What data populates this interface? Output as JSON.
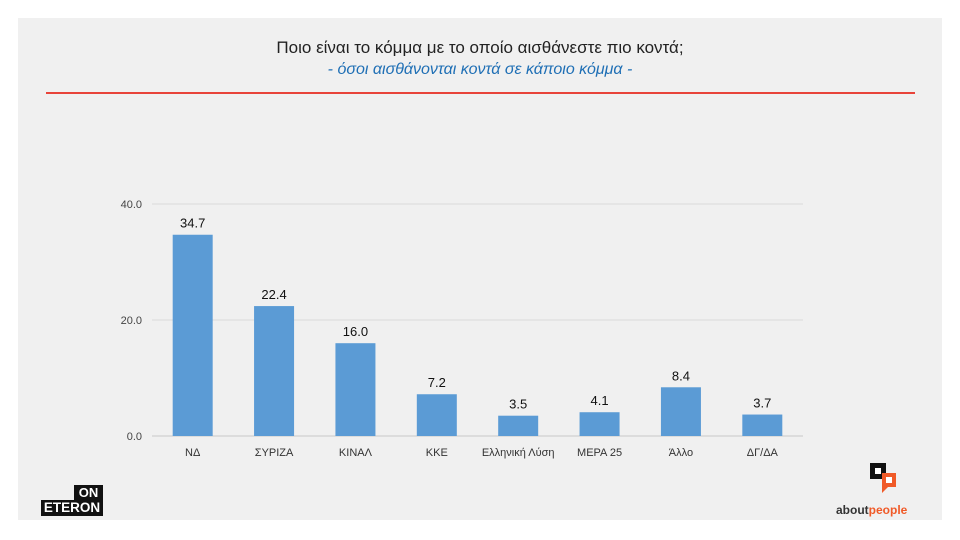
{
  "header": {
    "title": "Ποιο είναι το κόμμα με το οποίο αισθάνεστε πιο κοντά;",
    "subtitle": "- όσοι αισθάνονται κοντά σε κάποιο κόμμα -"
  },
  "chart_data": {
    "type": "bar",
    "categories": [
      "ΝΔ",
      "ΣΥΡΙΖΑ",
      "ΚΙΝΑΛ",
      "ΚΚΕ",
      "Ελληνική Λύση",
      "ΜΕΡΑ 25",
      "Άλλο",
      "ΔΓ/ΔΑ"
    ],
    "values": [
      34.7,
      22.4,
      16.0,
      7.2,
      3.5,
      4.1,
      8.4,
      3.7
    ],
    "data_labels": [
      "34.7",
      "22.4",
      "16.0",
      "7.2",
      "3.5",
      "4.1",
      "8.4",
      "3.7"
    ],
    "yticks": [
      0,
      20,
      40
    ],
    "ytick_labels": [
      "0.0",
      "20.0",
      "40.0"
    ],
    "ylim": [
      0,
      40
    ],
    "grid": true,
    "legend": "none",
    "bar_color": "#5b9bd5"
  },
  "logos": {
    "left_top": "ON",
    "left_bottom": "ETERON",
    "right_text_a": "about",
    "right_text_b": "people",
    "right_accent": "#f05a28"
  }
}
